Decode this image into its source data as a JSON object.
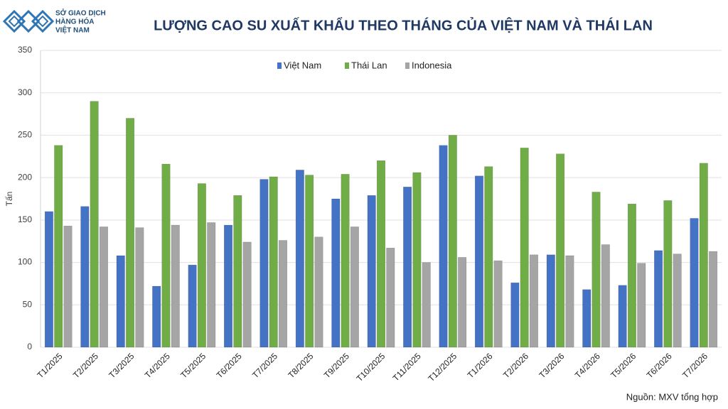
{
  "logo": {
    "lines": [
      "SỞ GIAO DỊCH",
      "HÀNG HÓA",
      "VIỆT NAM"
    ]
  },
  "chart_data": {
    "type": "bar",
    "title": "LƯỢNG CAO SU XUẤT KHẨU THEO THÁNG CỦA VIỆT NAM VÀ THÁI LAN",
    "ylabel": "Tấn",
    "source": "Nguồn: MXV tổng hợp",
    "legend": "top",
    "grid": true,
    "ylim": [
      0,
      350
    ],
    "yticks": [
      0,
      50,
      100,
      150,
      200,
      250,
      300,
      350
    ],
    "categories": [
      "T1/2025",
      "T2/2025",
      "T3/2025",
      "T4/2025",
      "T5/2025",
      "T6/2025",
      "T7/2025",
      "T8/2025",
      "T9/2025",
      "T10/2025",
      "T11/2025",
      "T12/2025",
      "T1/2026",
      "T2/2026",
      "T3/2026",
      "T4/2026",
      "T5/2026",
      "T6/2026",
      "T7/2026"
    ],
    "series": [
      {
        "name": "Việt Nam",
        "color": "#4472c4",
        "values": [
          160,
          166,
          108,
          72,
          97,
          144,
          198,
          209,
          175,
          179,
          189,
          238,
          202,
          76,
          109,
          68,
          73,
          114,
          152
        ]
      },
      {
        "name": "Thái Lan",
        "color": "#70ad47",
        "values": [
          238,
          290,
          270,
          216,
          193,
          179,
          201,
          203,
          204,
          220,
          206,
          250,
          213,
          235,
          228,
          183,
          169,
          173,
          217
        ]
      },
      {
        "name": "Indonesia",
        "color": "#a5a5a5",
        "values": [
          143,
          142,
          141,
          144,
          147,
          124,
          126,
          130,
          142,
          117,
          100,
          106,
          102,
          109,
          108,
          121,
          99,
          110,
          113
        ]
      }
    ]
  }
}
